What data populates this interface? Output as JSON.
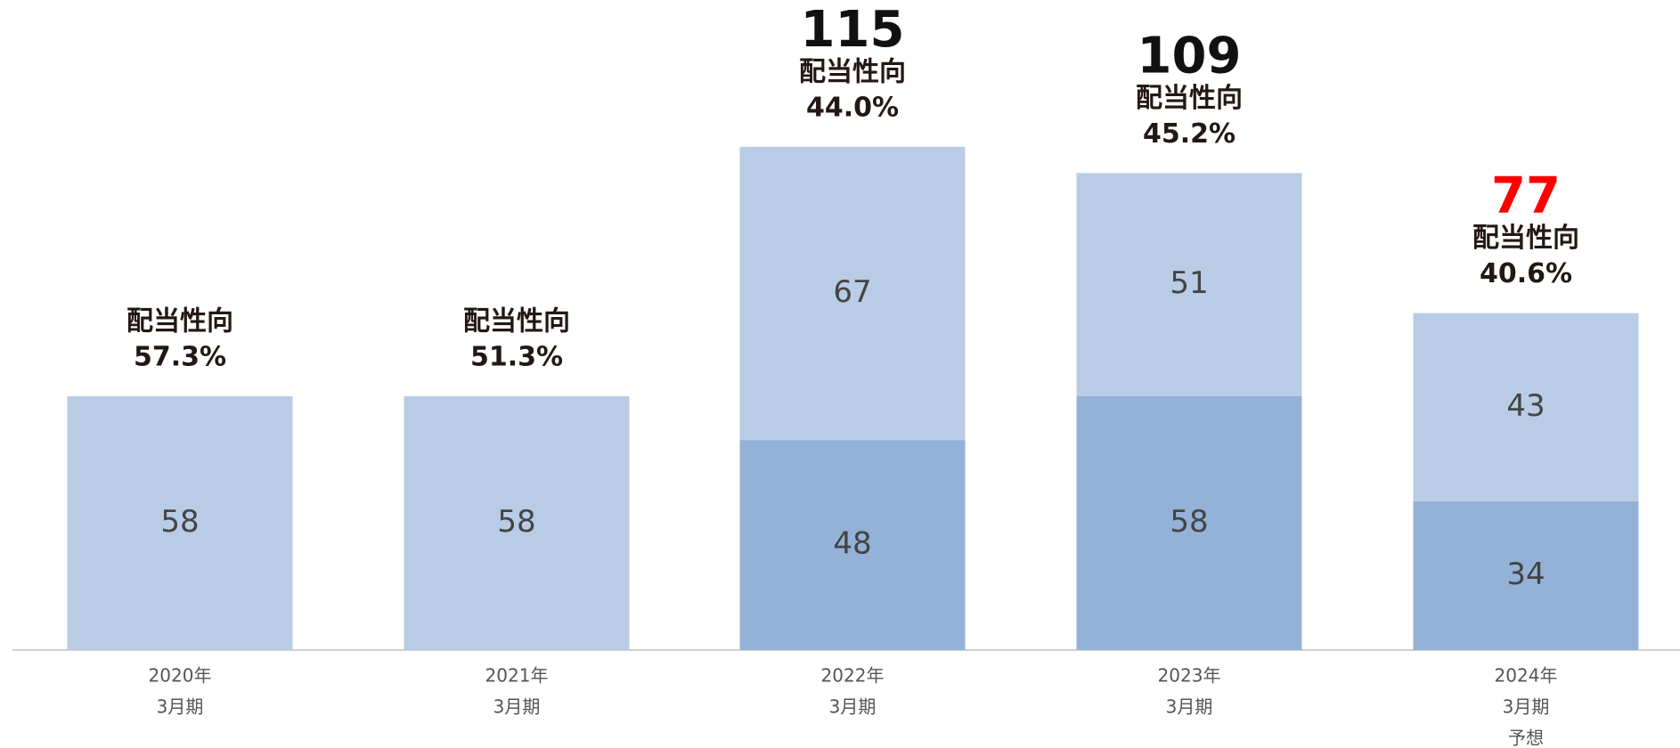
{
  "chart_data": {
    "type": "stacked_bar",
    "categories": [
      [
        "2020年",
        "3月期"
      ],
      [
        "2021年",
        "3月期"
      ],
      [
        "2022年",
        "3月期"
      ],
      [
        "2023年",
        "3月期"
      ],
      [
        "2024年",
        "3月期",
        "予想"
      ]
    ],
    "series": [
      {
        "color": "#94b2d7",
        "values": [
          null,
          null,
          48,
          58,
          34
        ]
      },
      {
        "color": "#b9cce5",
        "values": [
          58,
          58,
          67,
          51,
          43
        ]
      }
    ],
    "totals": [
      null,
      null,
      115,
      109,
      77
    ],
    "total_colors": [
      null,
      null,
      "#111111",
      "#111111",
      "#ff0000"
    ],
    "payout_title": "配当性向",
    "payout_ratio": [
      57.3,
      51.3,
      44.0,
      45.2,
      40.6
    ],
    "payout_value_labels": [
      "57.3%",
      "51.3%",
      "44.0%",
      "45.2%",
      "40.6%"
    ],
    "ylim": [
      0,
      140
    ]
  }
}
